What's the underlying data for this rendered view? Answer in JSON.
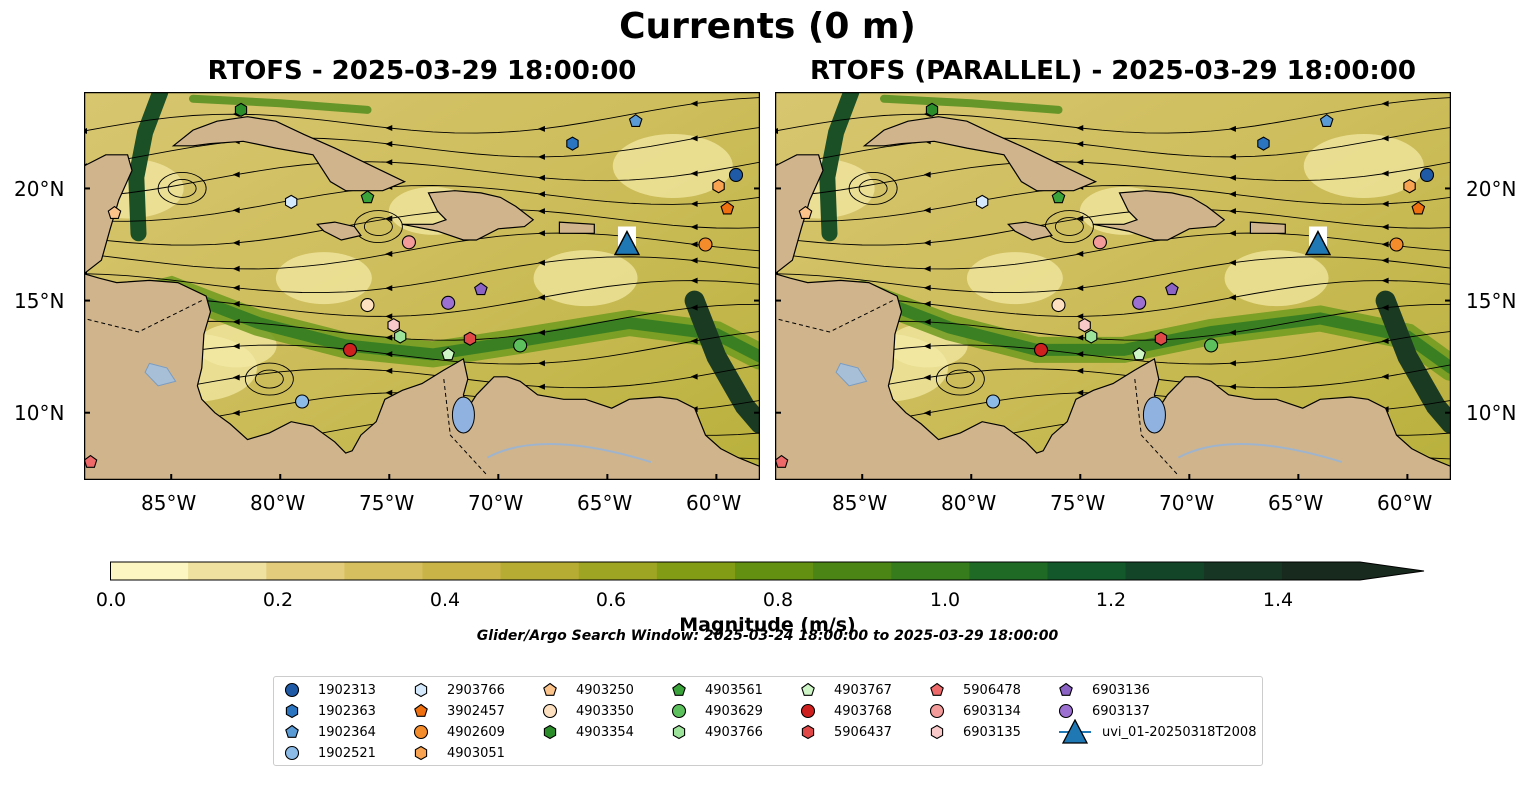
{
  "figure": {
    "title": "Currents (0 m)",
    "colorbar_label": "Magnitude (m/s)",
    "colorbar_ticks": [
      "0.0",
      "0.2",
      "0.4",
      "0.6",
      "0.8",
      "1.0",
      "1.2",
      "1.4"
    ],
    "colorbar_colors": [
      "#fbf6c2",
      "#efe1a0",
      "#e3cd7d",
      "#d6bf5e",
      "#c8b447",
      "#b6ab33",
      "#9ea522",
      "#829c16",
      "#649012",
      "#4b8515",
      "#367b1c",
      "#1f6b26",
      "#12582a",
      "#134628",
      "#173724",
      "#18291d"
    ],
    "search_window": "Glider/Argo Search Window: 2025-03-24 18:00:00 to 2025-03-29 18:00:00"
  },
  "panels": [
    {
      "title": "RTOFS - 2025-03-29 18:00:00"
    },
    {
      "title": "RTOFS (PARALLEL) - 2025-03-29 18:00:00"
    }
  ],
  "axes": {
    "lat_ticks": [
      "20°N",
      "15°N",
      "10°N"
    ],
    "lon_ticks": [
      "85°W",
      "80°W",
      "75°W",
      "70°W",
      "65°W",
      "60°W"
    ],
    "lon_range": [
      -89.0,
      -58.0
    ],
    "lat_range": [
      7.0,
      24.3
    ]
  },
  "floats": [
    {
      "id": "1902313",
      "color": "#1f5aa6",
      "shape": "circle",
      "pos": [
        -59.1,
        20.6
      ]
    },
    {
      "id": "1902363",
      "color": "#2a74c0",
      "shape": "hexagon",
      "pos": [
        -66.6,
        22.0
      ]
    },
    {
      "id": "1902364",
      "color": "#5b9bd5",
      "shape": "pentagon",
      "pos": [
        -63.7,
        23.0
      ]
    },
    {
      "id": "1902521",
      "color": "#8bbbe6",
      "shape": "circle",
      "pos": [
        -79.0,
        10.5
      ]
    },
    {
      "id": "2903766",
      "color": "#d4e9fb",
      "shape": "hexagon",
      "pos": [
        -79.5,
        19.4
      ]
    },
    {
      "id": "3902457",
      "color": "#f0700f",
      "shape": "pentagon",
      "pos": [
        -59.5,
        19.1
      ]
    },
    {
      "id": "4902609",
      "color": "#f58c2c",
      "shape": "circle",
      "pos": [
        -60.5,
        17.5
      ]
    },
    {
      "id": "4903051",
      "color": "#f8a351",
      "shape": "hexagon",
      "pos": [
        -59.9,
        20.1
      ]
    },
    {
      "id": "4903250",
      "color": "#fbc38a",
      "shape": "pentagon",
      "pos": [
        -87.6,
        18.9
      ]
    },
    {
      "id": "4903350",
      "color": "#fde0c0",
      "shape": "circle",
      "pos": [
        -76.0,
        14.8
      ]
    },
    {
      "id": "4903354",
      "color": "#2a8d2a",
      "shape": "hexagon",
      "pos": [
        -81.8,
        23.5
      ]
    },
    {
      "id": "4903561",
      "color": "#3aa33a",
      "shape": "pentagon",
      "pos": [
        -76.0,
        19.6
      ]
    },
    {
      "id": "4903629",
      "color": "#5cc05c",
      "shape": "circle",
      "pos": [
        -69.0,
        13.0
      ]
    },
    {
      "id": "4903766",
      "color": "#9ee39b",
      "shape": "hexagon",
      "pos": [
        -74.5,
        13.4
      ]
    },
    {
      "id": "4903767",
      "color": "#cdf5c5",
      "shape": "pentagon",
      "pos": [
        -72.3,
        12.6
      ]
    },
    {
      "id": "4903768",
      "color": "#cf2020",
      "shape": "circle",
      "pos": [
        -76.8,
        12.8
      ]
    },
    {
      "id": "5906437",
      "color": "#e04848",
      "shape": "hexagon",
      "pos": [
        -71.3,
        13.3
      ]
    },
    {
      "id": "5906478",
      "color": "#ee6a6a",
      "shape": "pentagon",
      "pos": [
        -88.7,
        7.8
      ]
    },
    {
      "id": "6903134",
      "color": "#f39a9a",
      "shape": "circle",
      "pos": [
        -74.1,
        17.6
      ]
    },
    {
      "id": "6903135",
      "color": "#f9c8c8",
      "shape": "hexagon",
      "pos": [
        -74.8,
        13.9
      ]
    },
    {
      "id": "6903136",
      "color": "#8a63c4",
      "shape": "pentagon",
      "pos": [
        -70.8,
        15.5
      ]
    },
    {
      "id": "6903137",
      "color": "#9b70d0",
      "shape": "circle",
      "pos": [
        -72.3,
        14.9
      ]
    }
  ],
  "glider": {
    "id": "uvi_01-20250318T2008",
    "color": "#1f77b4",
    "pos": [
      -64.1,
      17.5
    ]
  }
}
